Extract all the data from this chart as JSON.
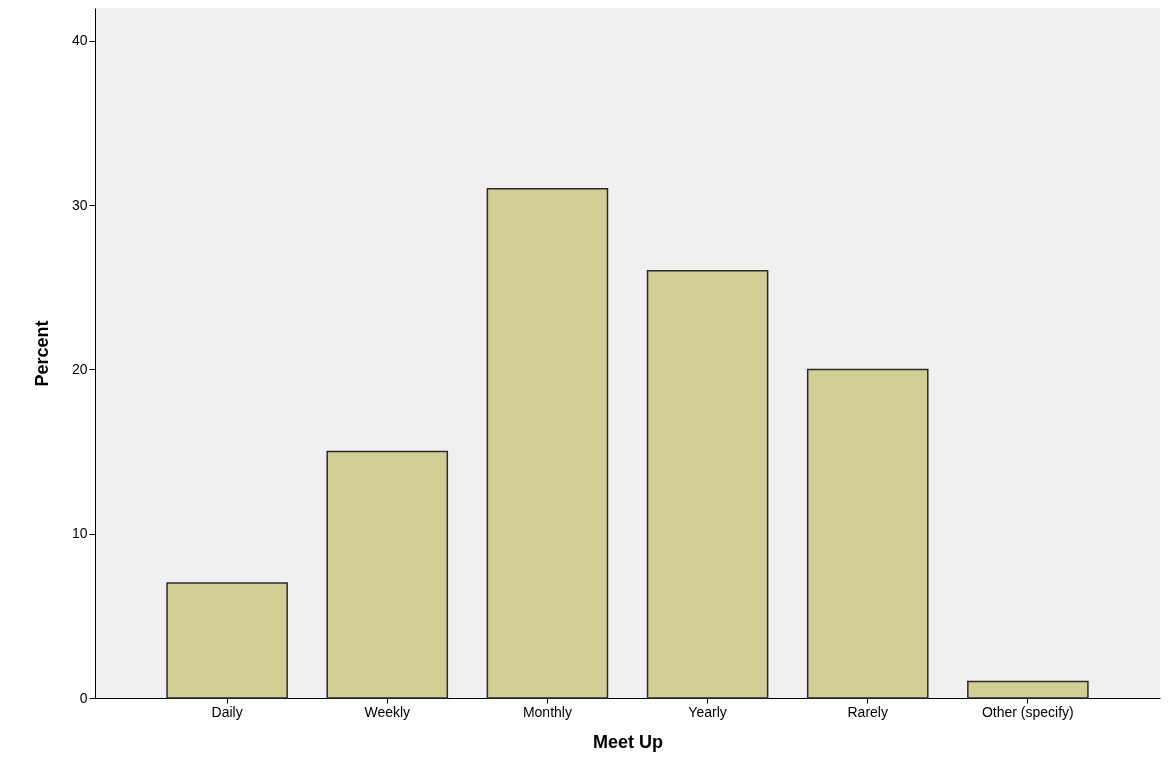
{
  "chart_data": {
    "type": "bar",
    "xlabel": "Meet Up",
    "ylabel": "Percent",
    "categories": [
      "Daily",
      "Weekly",
      "Monthly",
      "Yearly",
      "Rarely",
      "Other (specify)"
    ],
    "values": [
      7,
      15,
      31,
      26,
      20,
      1
    ],
    "color": "#d3cd96",
    "ylim": [
      0,
      42
    ],
    "yticks": [
      0,
      10,
      20,
      30,
      40
    ],
    "grid": false
  }
}
